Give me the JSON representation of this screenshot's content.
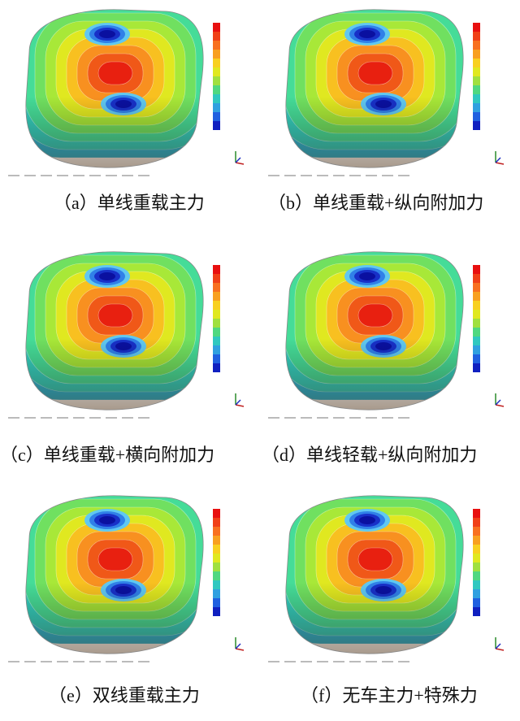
{
  "panels": [
    {
      "caption": "（a）单线重载主力"
    },
    {
      "caption": "（b）单线重载+纵向附加力"
    },
    {
      "caption": "（c）单线重载+横向附加力"
    },
    {
      "caption": "（d）单线轻载+纵向附加力"
    },
    {
      "caption": "（e）双线重载主力"
    },
    {
      "caption": "（f）无车主力+特殊力"
    }
  ]
}
